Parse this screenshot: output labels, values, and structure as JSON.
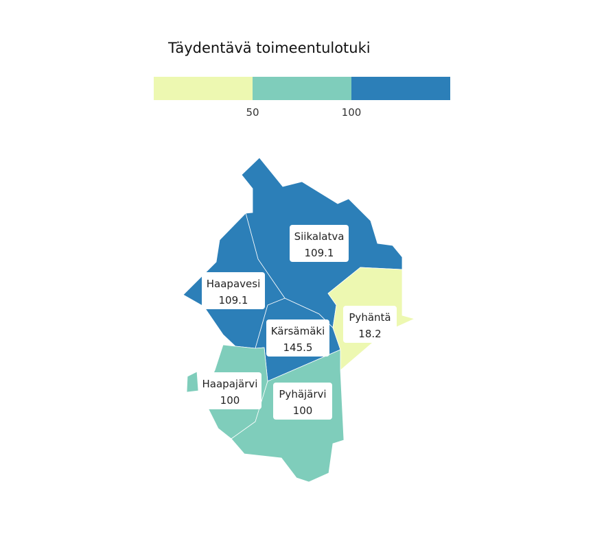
{
  "title": "Täydentävä toimeentulotuki",
  "legend": {
    "bins": [
      {
        "color": "#edf8b1"
      },
      {
        "color": "#7fcdbb"
      },
      {
        "color": "#2c7fb8"
      }
    ],
    "breaks": [
      "50",
      "100"
    ]
  },
  "regions": [
    {
      "id": "siikalatva",
      "name": "Siikalatva",
      "value": "109.1",
      "color": "#2c7fb8"
    },
    {
      "id": "haapavesi",
      "name": "Haapavesi",
      "value": "109.1",
      "color": "#2c7fb8"
    },
    {
      "id": "karsamaki",
      "name": "Kärsämäki",
      "value": "145.5",
      "color": "#2c7fb8"
    },
    {
      "id": "pyhanta",
      "name": "Pyhäntä",
      "value": "18.2",
      "color": "#edf8b1"
    },
    {
      "id": "haapajarvi",
      "name": "Haapajärvi",
      "value": "100",
      "color": "#7fcdbb"
    },
    {
      "id": "pyhajarvi",
      "name": "Pyhäjärvi",
      "value": "100",
      "color": "#7fcdbb"
    }
  ]
}
